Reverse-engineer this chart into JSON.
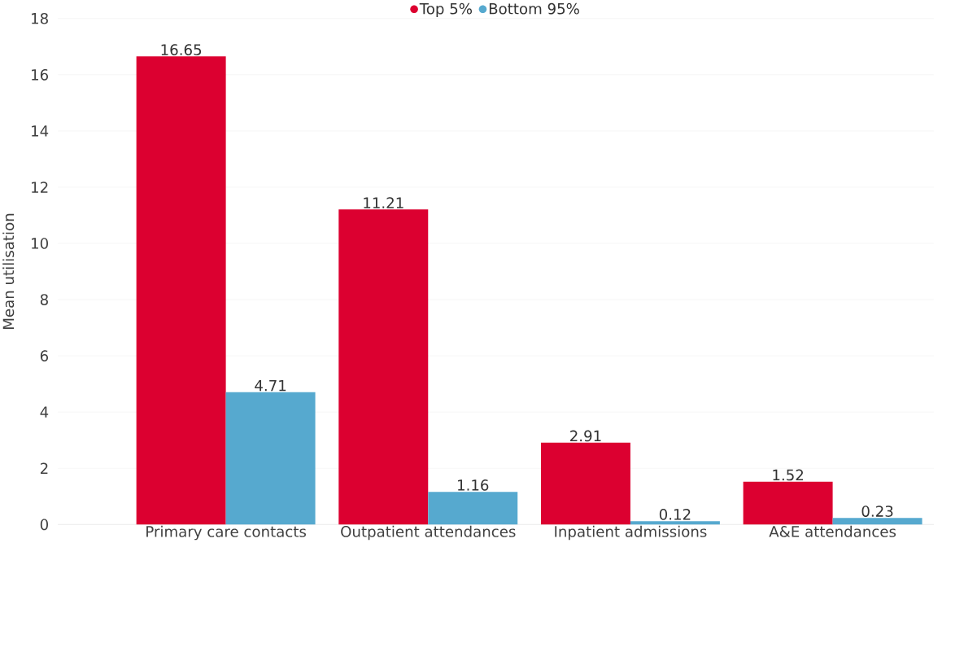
{
  "chart_data": {
    "type": "bar",
    "ylabel": "Mean utilisation",
    "categories": [
      "Primary care contacts",
      "Outpatient attendances",
      "Inpatient admissions",
      "A&E attendances"
    ],
    "series": [
      {
        "name": "Top 5%",
        "color": "#dc0030",
        "values": [
          16.65,
          11.21,
          2.91,
          1.52
        ]
      },
      {
        "name": "Bottom 95%",
        "color": "#56a9cf",
        "values": [
          4.71,
          1.16,
          0.12,
          0.23
        ]
      }
    ],
    "ylim": [
      0,
      18
    ],
    "yticks": [
      0,
      2,
      4,
      6,
      8,
      10,
      12,
      14,
      16,
      18
    ],
    "grid": "y",
    "legend": "top",
    "data_labels": true
  }
}
